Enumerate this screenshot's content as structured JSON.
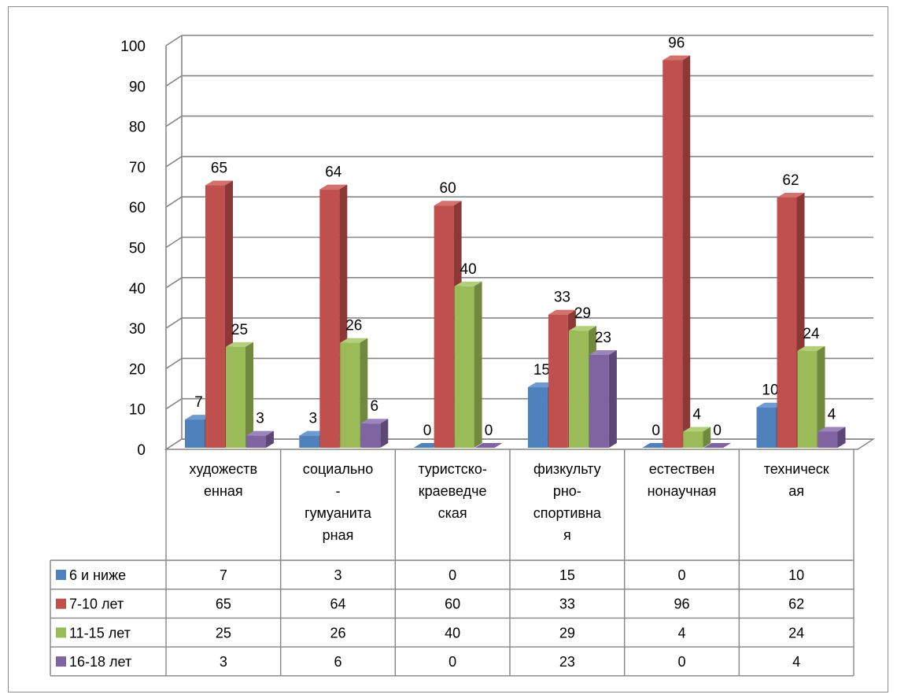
{
  "chart_data": {
    "type": "bar",
    "style": "3d-clustered-column-with-data-table",
    "categories": [
      [
        "художеств",
        "енная"
      ],
      [
        "социально",
        "-",
        "гумуанита",
        "рная"
      ],
      [
        "туристско-",
        "краеведче",
        "ская"
      ],
      [
        "физкульту",
        "рно-",
        "спортивна",
        "я"
      ],
      [
        "естествен",
        "нонаучная"
      ],
      [
        "техническ",
        "ая"
      ]
    ],
    "series": [
      {
        "name": "6 и ниже",
        "color": "#4f81bd",
        "side": "#385d8a",
        "top": "#6f9bd1",
        "values": [
          7,
          3,
          0,
          15,
          0,
          10
        ]
      },
      {
        "name": "7-10 лет",
        "color": "#c0504d",
        "side": "#8c3836",
        "top": "#d3716e",
        "values": [
          65,
          64,
          60,
          33,
          96,
          62
        ]
      },
      {
        "name": "11-15 лет",
        "color": "#9bbb59",
        "side": "#71893f",
        "top": "#b3cf7a",
        "values": [
          25,
          26,
          40,
          29,
          4,
          24
        ]
      },
      {
        "name": "16-18 лет",
        "color": "#8064a2",
        "side": "#5c4776",
        "top": "#9c85bb",
        "values": [
          3,
          6,
          0,
          23,
          0,
          4
        ]
      }
    ],
    "y_ticks": [
      "0",
      "10",
      "20",
      "30",
      "40",
      "50",
      "60",
      "70",
      "80",
      "90",
      "100"
    ],
    "ylim": [
      0,
      100
    ],
    "grid": true,
    "legend": "data-table"
  }
}
